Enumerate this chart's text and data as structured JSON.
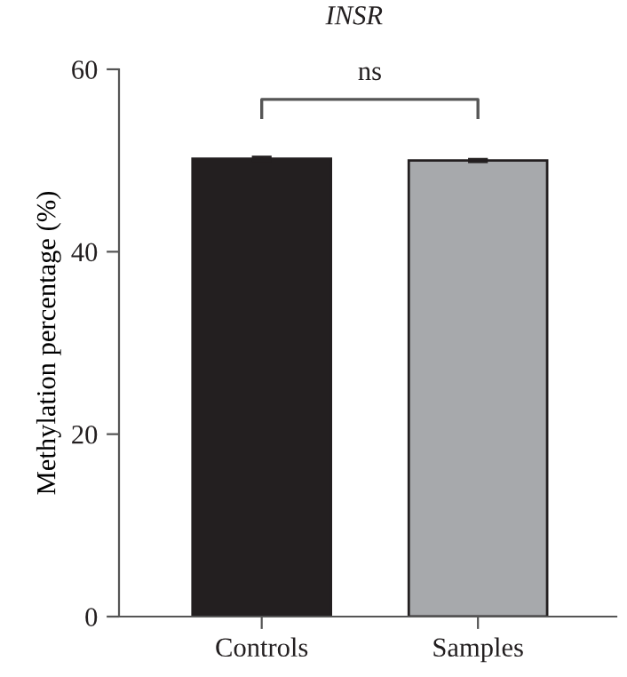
{
  "chart_data": {
    "type": "bar",
    "title": "INSR",
    "ylabel": "Methylation percentage (%)",
    "categories": [
      "Controls",
      "Samples"
    ],
    "series": [
      {
        "colors": [
          "#231f20",
          "#a7a9ac"
        ],
        "values": [
          50.2,
          50.0
        ],
        "errors": [
          0.2,
          0.15
        ]
      }
    ],
    "ylim": [
      0,
      60
    ],
    "yticks": [
      0,
      20,
      40,
      60
    ],
    "grid": false,
    "legend": false,
    "annotations": [
      "ns"
    ]
  }
}
